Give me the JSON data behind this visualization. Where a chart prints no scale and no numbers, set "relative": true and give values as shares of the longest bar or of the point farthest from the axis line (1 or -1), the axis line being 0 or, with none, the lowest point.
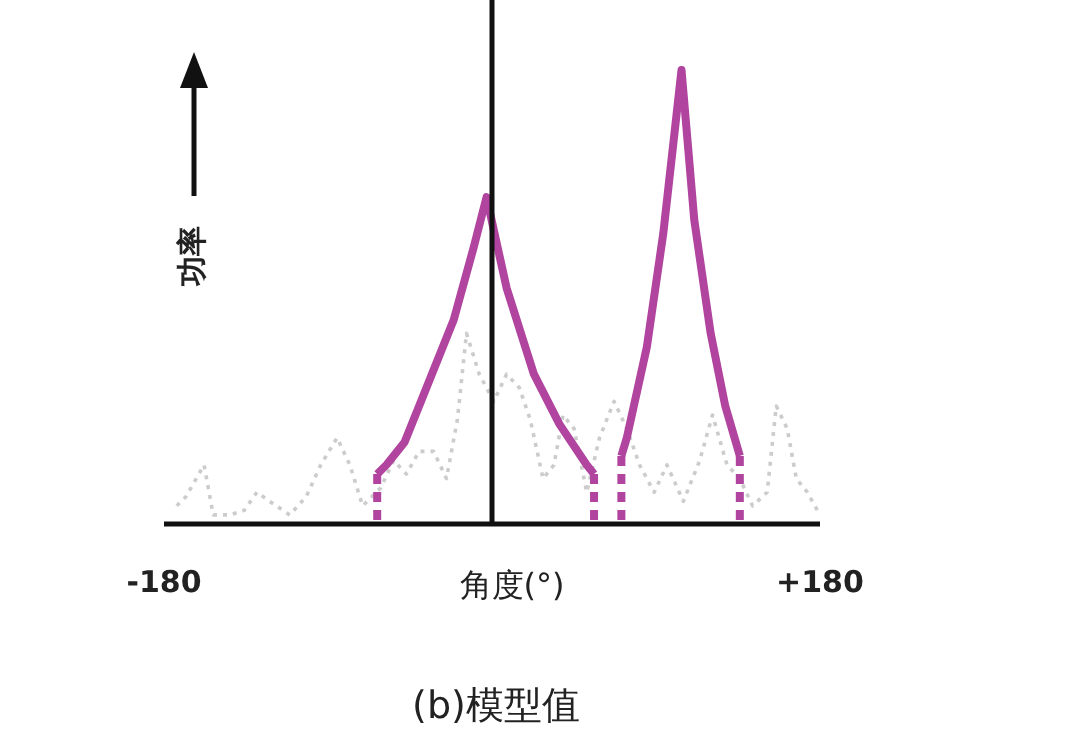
{
  "chart_data": {
    "type": "line",
    "title": "(b)模型值",
    "xlabel": "角度(°)",
    "ylabel": "功率",
    "relative": true,
    "xlim": [
      -180,
      180
    ],
    "xticks": [
      {
        "value": -180,
        "label": "-180"
      },
      {
        "value": 180,
        "label": "+180"
      }
    ],
    "series": [
      {
        "color": "#cccccc",
        "line_style": "dotted",
        "x": [
          -173,
          -168,
          -158,
          -153,
          -144,
          -136,
          -129,
          -122,
          -111,
          -102,
          -94,
          -85,
          -78,
          -71,
          -61,
          -54,
          -47,
          -40,
          -32,
          -25,
          -19,
          -14,
          -7,
          1,
          8,
          15,
          21,
          28,
          34,
          39,
          45,
          52,
          59,
          67,
          74,
          81,
          89,
          96,
          105,
          114,
          121,
          129,
          136,
          143,
          151,
          156,
          162,
          167,
          173,
          180
        ],
        "values": [
          0.04,
          0.06,
          0.13,
          0.02,
          0.02,
          0.03,
          0.07,
          0.05,
          0.02,
          0.06,
          0.13,
          0.19,
          0.13,
          0.04,
          0.08,
          0.14,
          0.11,
          0.16,
          0.16,
          0.1,
          0.23,
          0.42,
          0.33,
          0.27,
          0.33,
          0.3,
          0.23,
          0.1,
          0.13,
          0.24,
          0.21,
          0.07,
          0.19,
          0.27,
          0.21,
          0.13,
          0.07,
          0.13,
          0.05,
          0.14,
          0.24,
          0.13,
          0.1,
          0.04,
          0.07,
          0.26,
          0.21,
          0.1,
          0.07,
          0.02
        ]
      },
      {
        "color": "#b0449e",
        "line_style": "solid",
        "x": [
          -63,
          -58,
          -48,
          -40,
          -21,
          -10,
          -3,
          8,
          23,
          37,
          52,
          56
        ],
        "values": [
          0.11,
          0.13,
          0.18,
          0.26,
          0.45,
          0.61,
          0.72,
          0.52,
          0.33,
          0.22,
          0.13,
          0.11
        ]
      },
      {
        "color": "#b0449e",
        "line_style": "solid",
        "x": [
          71,
          74,
          85,
          94,
          104,
          111,
          120,
          128,
          136
        ],
        "values": [
          0.15,
          0.19,
          0.39,
          0.64,
          1,
          0.67,
          0.42,
          0.26,
          0.15
        ]
      },
      {
        "color": "#b0449e",
        "line_style": "dashed",
        "x": [
          -63,
          -63
        ],
        "values": [
          0.11,
          0
        ]
      },
      {
        "color": "#b0449e",
        "line_style": "dashed",
        "x": [
          56,
          56
        ],
        "values": [
          0.11,
          0
        ]
      },
      {
        "color": "#b0449e",
        "line_style": "dashed",
        "x": [
          71,
          71
        ],
        "values": [
          0.15,
          0
        ]
      },
      {
        "color": "#b0449e",
        "line_style": "dashed",
        "x": [
          136,
          136
        ],
        "values": [
          0.15,
          0
        ]
      }
    ]
  }
}
